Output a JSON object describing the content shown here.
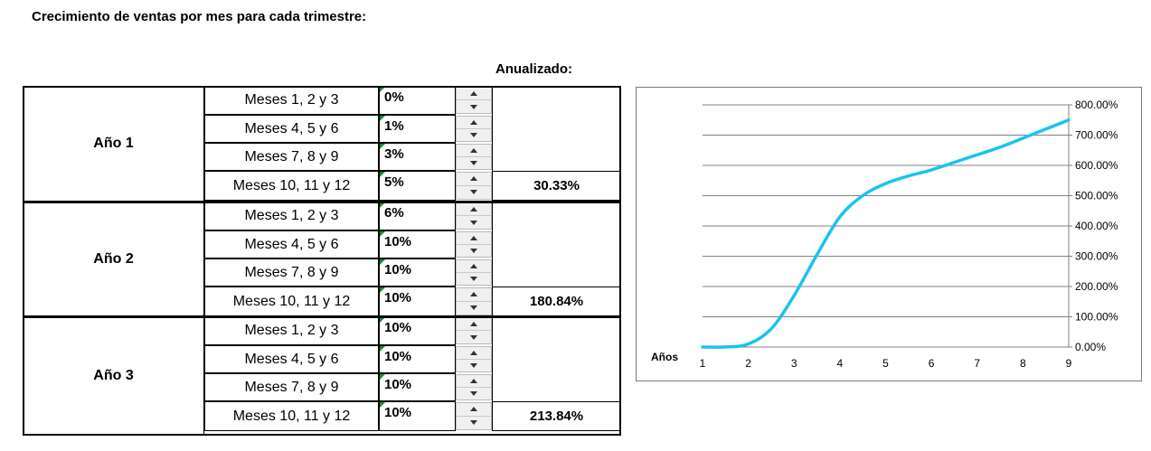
{
  "heading": "Crecimiento de ventas por mes para cada trimestre:",
  "annual_header": "Anualizado:",
  "years": [
    {
      "label": "Año 1",
      "annualized": "30.33%",
      "quarters": [
        {
          "label": "Meses 1, 2 y 3",
          "value": "0%"
        },
        {
          "label": "Meses 4, 5 y 6",
          "value": "1%"
        },
        {
          "label": "Meses 7, 8 y 9",
          "value": "3%"
        },
        {
          "label": "Meses 10, 11 y 12",
          "value": "5%"
        }
      ]
    },
    {
      "label": "Año 2",
      "annualized": "180.84%",
      "quarters": [
        {
          "label": "Meses 1, 2 y 3",
          "value": "6%"
        },
        {
          "label": "Meses 4, 5 y 6",
          "value": "10%"
        },
        {
          "label": "Meses 7, 8 y 9",
          "value": "10%"
        },
        {
          "label": "Meses 10, 11 y 12",
          "value": "10%"
        }
      ]
    },
    {
      "label": "Año 3",
      "annualized": "213.84%",
      "quarters": [
        {
          "label": "Meses 1, 2 y 3",
          "value": "10%"
        },
        {
          "label": "Meses 4, 5 y 6",
          "value": "10%"
        },
        {
          "label": "Meses 7, 8 y 9",
          "value": "10%"
        },
        {
          "label": "Meses 10, 11 y 12",
          "value": "10%"
        }
      ]
    }
  ],
  "chart_data": {
    "type": "line",
    "title": "",
    "xlabel": "Años",
    "ylabel": "",
    "x": [
      1,
      1.5,
      2,
      2.5,
      3,
      3.5,
      4,
      4.5,
      5,
      5.5,
      6,
      6.5,
      7,
      7.5,
      8,
      8.5,
      9
    ],
    "series": [
      {
        "values": [
          0,
          0.5,
          10,
          60,
          170,
          305,
          430,
          500,
          540,
          565,
          585,
          610,
          635,
          660,
          690,
          720,
          750
        ],
        "color": "#19c3f0"
      }
    ],
    "xticks": [
      "1",
      "2",
      "3",
      "4",
      "5",
      "6",
      "7",
      "8",
      "9"
    ],
    "yticks": [
      "0.00%",
      "100.00%",
      "200.00%",
      "300.00%",
      "400.00%",
      "500.00%",
      "600.00%",
      "700.00%",
      "800.00%"
    ],
    "ylim": [
      0,
      800
    ],
    "xlim": [
      1,
      9
    ],
    "grid": true,
    "y_axis_side": "right"
  }
}
